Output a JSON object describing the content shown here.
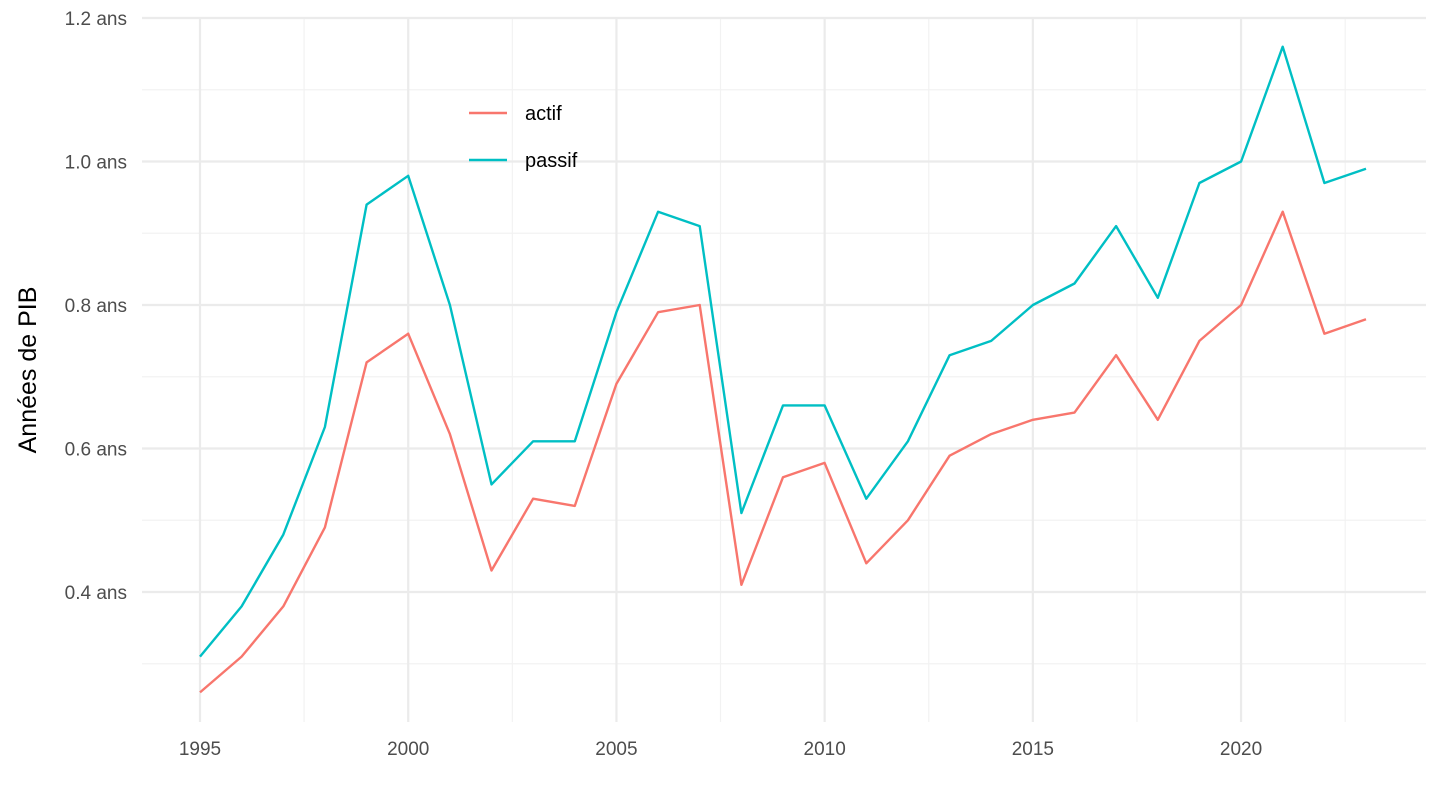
{
  "chart_data": {
    "type": "line",
    "title": "",
    "xlabel": "",
    "ylabel": "Années de PIB",
    "y_unit_suffix": " ans",
    "xlim": [
      1993.6,
      2024.0
    ],
    "ylim": [
      0.23,
      1.2
    ],
    "x_ticks": [
      1995,
      2000,
      2005,
      2010,
      2015,
      2020
    ],
    "x_tick_labels": [
      "1995",
      "2000",
      "2005",
      "2010",
      "2015",
      "2020"
    ],
    "y_ticks": [
      0.4,
      0.6,
      0.8,
      1.0,
      1.2
    ],
    "y_tick_labels": [
      "0.4 ans",
      "0.6 ans",
      "0.8 ans",
      "1.0 ans",
      "1.2 ans"
    ],
    "grid": true,
    "legend_position": "top-center",
    "x": [
      1995,
      1996,
      1997,
      1998,
      1999,
      2000,
      2001,
      2002,
      2003,
      2004,
      2005,
      2006,
      2007,
      2008,
      2009,
      2010,
      2011,
      2012,
      2013,
      2014,
      2015,
      2016,
      2017,
      2018,
      2019,
      2020,
      2021,
      2022,
      2023
    ],
    "series": [
      {
        "name": "actif",
        "color": "#f8766d",
        "values": [
          0.26,
          0.31,
          0.38,
          0.49,
          0.72,
          0.76,
          0.62,
          0.43,
          0.53,
          0.52,
          0.69,
          0.79,
          0.8,
          0.41,
          0.56,
          0.58,
          0.44,
          0.5,
          0.59,
          0.62,
          0.64,
          0.65,
          0.73,
          0.64,
          0.75,
          0.8,
          0.93,
          0.76,
          0.78
        ]
      },
      {
        "name": "passif",
        "color": "#00bfc4",
        "values": [
          0.31,
          0.38,
          0.48,
          0.63,
          0.94,
          0.98,
          0.8,
          0.55,
          0.61,
          0.61,
          0.79,
          0.93,
          0.91,
          0.51,
          0.66,
          0.66,
          0.53,
          0.61,
          0.73,
          0.75,
          0.8,
          0.83,
          0.91,
          0.81,
          0.97,
          1.0,
          1.16,
          0.97,
          0.99
        ]
      }
    ]
  }
}
